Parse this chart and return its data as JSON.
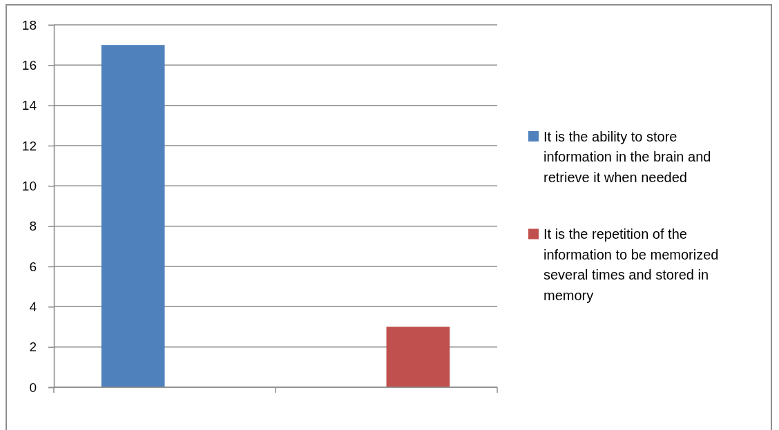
{
  "chart_data": {
    "type": "bar",
    "categories": [
      null,
      null
    ],
    "series": [
      {
        "name": "It is the ability to store information in the brain and retrieve it when needed",
        "color": "#4f81bd",
        "values": [
          17,
          null
        ]
      },
      {
        "name": "It is the repetition of the information to be memorized several times and stored in memory",
        "color": "#c0504d",
        "values": [
          null,
          3
        ]
      }
    ],
    "ylim": [
      0,
      18
    ],
    "yticks": [
      0,
      2,
      4,
      6,
      8,
      10,
      12,
      14,
      16,
      18
    ],
    "grid": "y",
    "legend": "right"
  }
}
